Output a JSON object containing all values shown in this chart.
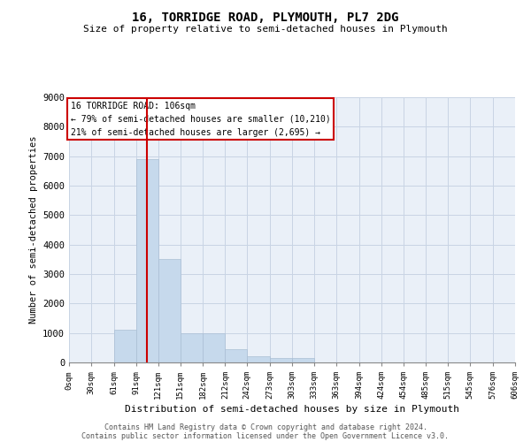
{
  "title": "16, TORRIDGE ROAD, PLYMOUTH, PL7 2DG",
  "subtitle": "Size of property relative to semi-detached houses in Plymouth",
  "xlabel": "Distribution of semi-detached houses by size in Plymouth",
  "ylabel": "Number of semi-detached properties",
  "footer_line1": "Contains HM Land Registry data © Crown copyright and database right 2024.",
  "footer_line2": "Contains public sector information licensed under the Open Government Licence v3.0.",
  "annotation_title": "16 TORRIDGE ROAD: 106sqm",
  "annotation_line1": "← 79% of semi-detached houses are smaller (10,210)",
  "annotation_line2": "21% of semi-detached houses are larger (2,695) →",
  "property_size": 106,
  "bar_edges": [
    0,
    30,
    61,
    91,
    121,
    151,
    182,
    212,
    242,
    273,
    303,
    333,
    363,
    394,
    424,
    454,
    485,
    515,
    545,
    576,
    606
  ],
  "bar_heights": [
    0,
    0,
    1100,
    6900,
    3500,
    1000,
    1000,
    450,
    200,
    150,
    150,
    0,
    0,
    0,
    0,
    0,
    0,
    0,
    0,
    0
  ],
  "bar_color": "#c6d9ec",
  "bar_edge_color": "#aabfd4",
  "red_line_color": "#cc0000",
  "annotation_box_color": "#cc0000",
  "grid_color": "#c8d4e4",
  "background_color": "#eaf0f8",
  "ylim": [
    0,
    9000
  ],
  "yticks": [
    0,
    1000,
    2000,
    3000,
    4000,
    5000,
    6000,
    7000,
    8000,
    9000
  ]
}
